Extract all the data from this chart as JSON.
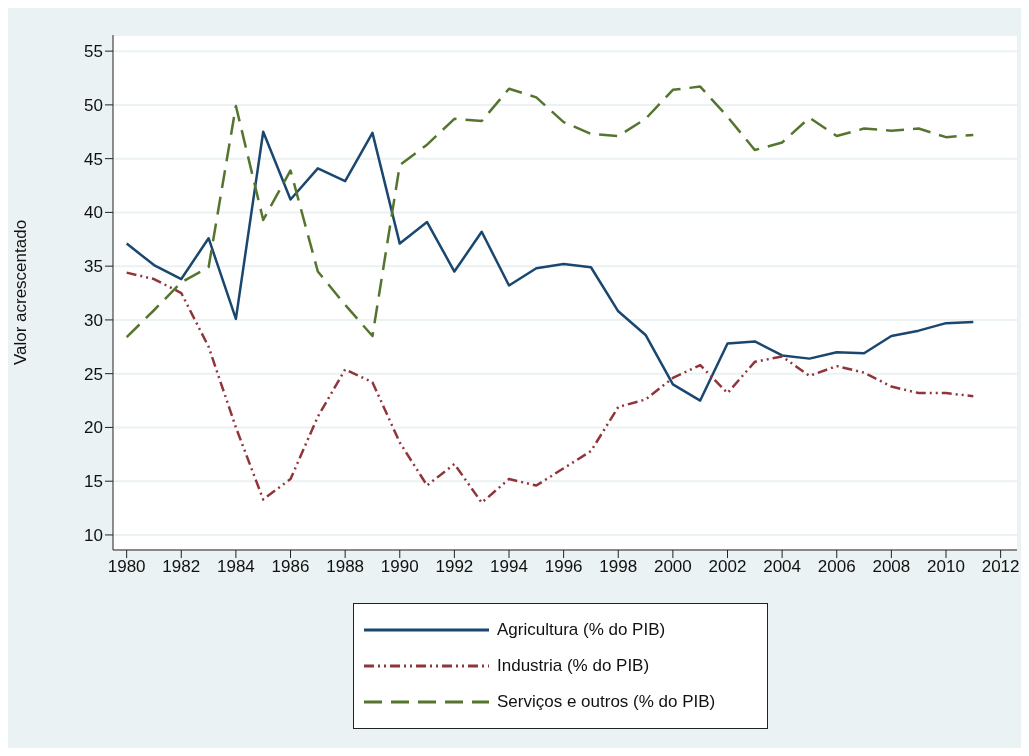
{
  "chart_data": {
    "type": "line",
    "ylabel": "Valor acrescentado",
    "x": [
      1980,
      1981,
      1982,
      1983,
      1984,
      1985,
      1986,
      1987,
      1988,
      1989,
      1990,
      1991,
      1992,
      1993,
      1994,
      1995,
      1996,
      1997,
      1998,
      1999,
      2000,
      2001,
      2002,
      2003,
      2004,
      2005,
      2006,
      2007,
      2008,
      2009,
      2010,
      2011
    ],
    "xlim": [
      1979.5,
      2012.6
    ],
    "xticks": [
      1980,
      1982,
      1984,
      1986,
      1988,
      1990,
      1992,
      1994,
      1996,
      1998,
      2000,
      2002,
      2004,
      2006,
      2008,
      2010,
      2012
    ],
    "ylim": [
      8.6,
      56.5
    ],
    "yticks": [
      10,
      15,
      20,
      25,
      30,
      35,
      40,
      45,
      50,
      55
    ],
    "grid": "y",
    "legend": "bottom",
    "series": [
      {
        "name": "Agricultura (% do PIB)",
        "color": "#1a476f",
        "line_style": "solid",
        "values": [
          37.1,
          35.1,
          33.8,
          37.6,
          30.1,
          47.5,
          41.2,
          44.1,
          42.9,
          47.4,
          37.1,
          39.1,
          34.5,
          38.2,
          33.2,
          34.8,
          35.2,
          34.9,
          30.8,
          28.6,
          24.0,
          22.5,
          27.8,
          28.0,
          26.7,
          26.4,
          27.0,
          26.9,
          28.5,
          29.0,
          29.7,
          29.8
        ]
      },
      {
        "name": "Industria (% do PIB)",
        "color": "#90353b",
        "line_style": "dotted",
        "values": [
          34.4,
          33.8,
          32.5,
          27.5,
          20.0,
          13.3,
          15.2,
          21.0,
          25.4,
          24.2,
          18.6,
          14.6,
          16.6,
          13.0,
          15.2,
          14.6,
          16.2,
          17.8,
          21.9,
          22.6,
          24.6,
          25.8,
          23.2,
          26.1,
          26.6,
          24.8,
          25.7,
          25.1,
          23.8,
          23.2,
          23.2,
          22.9
        ]
      },
      {
        "name": "Serviços e outros (% do PIB)",
        "color": "#55752f",
        "line_style": "dashed",
        "values": [
          28.4,
          30.9,
          33.5,
          34.9,
          49.9,
          39.3,
          43.9,
          34.5,
          31.4,
          28.5,
          44.4,
          46.3,
          48.7,
          48.5,
          51.5,
          50.7,
          48.4,
          47.3,
          47.1,
          48.7,
          51.4,
          51.7,
          48.9,
          45.8,
          46.5,
          48.8,
          47.1,
          47.8,
          47.6,
          47.8,
          47.0,
          47.2
        ]
      }
    ]
  }
}
